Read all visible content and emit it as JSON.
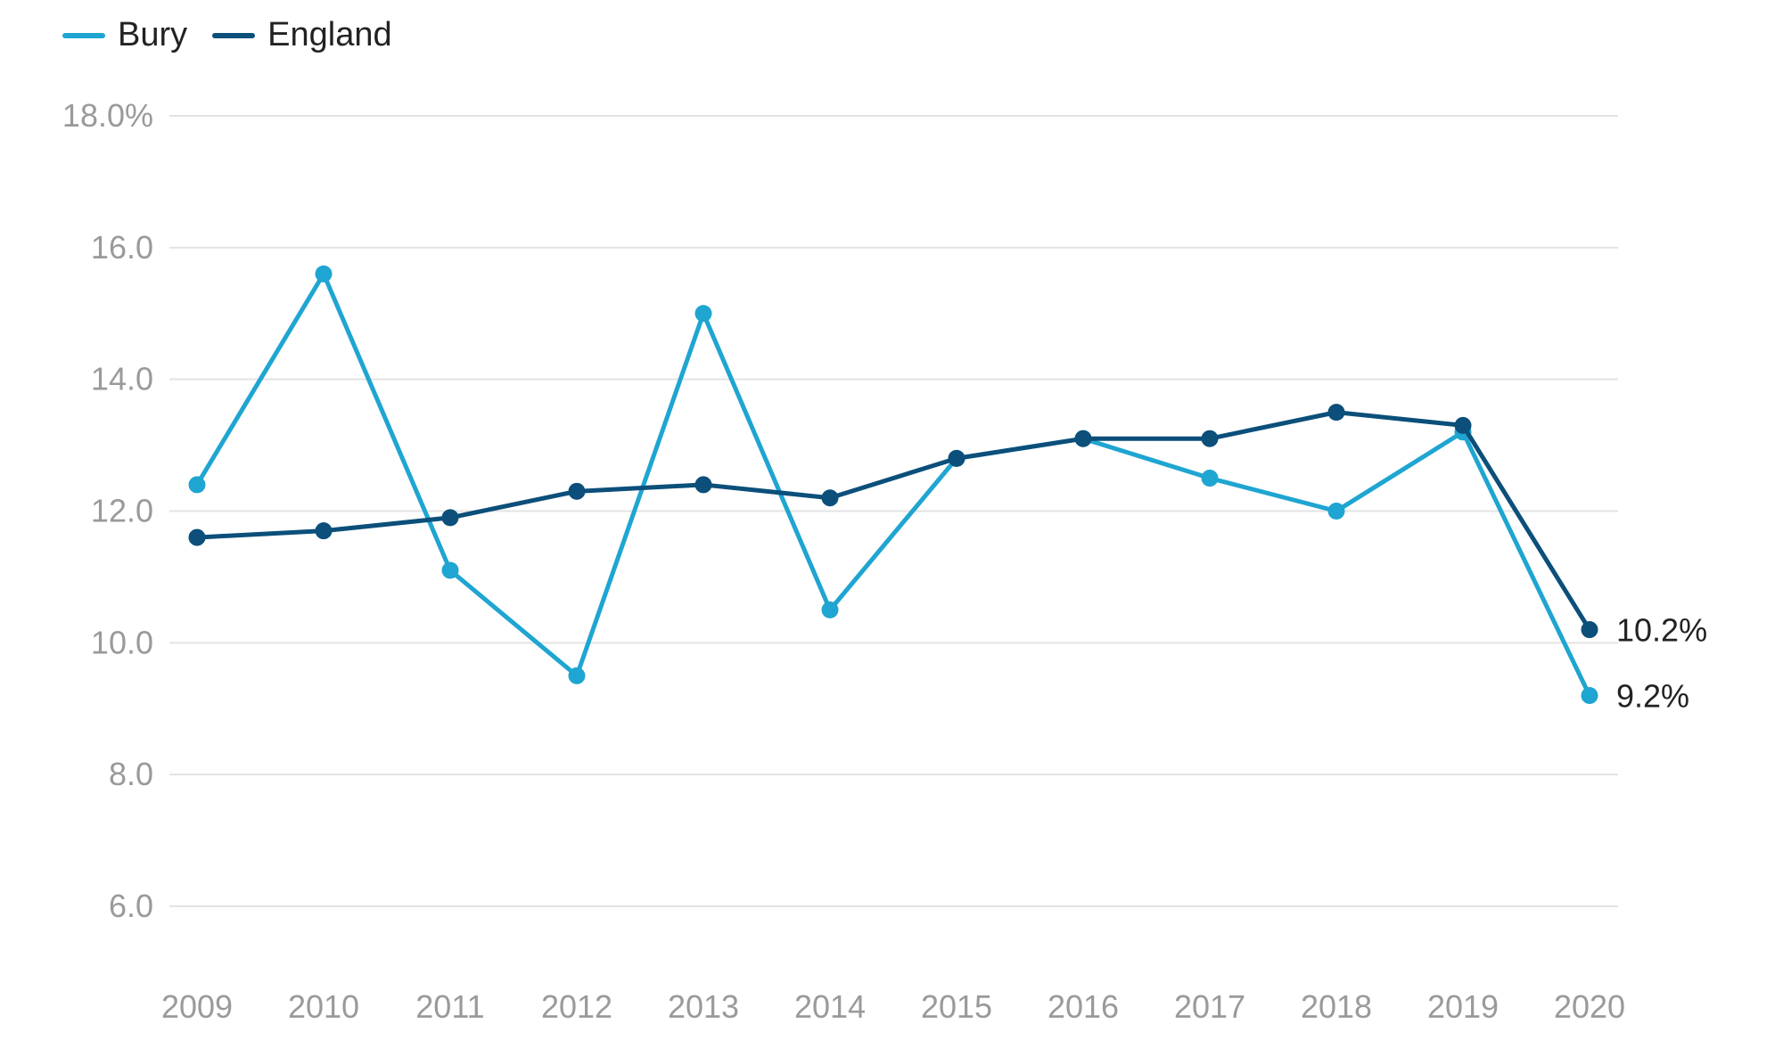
{
  "legend": [
    {
      "name": "Bury",
      "color": "#1fa5d1"
    },
    {
      "name": "England",
      "color": "#0b4f7a"
    }
  ],
  "chart_data": {
    "type": "line",
    "title": "",
    "xlabel": "",
    "ylabel": "",
    "x": [
      2009,
      2010,
      2011,
      2012,
      2013,
      2014,
      2015,
      2016,
      2017,
      2018,
      2019,
      2020
    ],
    "x_tick_labels": [
      "2009",
      "2010",
      "2011",
      "2012",
      "2013",
      "2014",
      "2015",
      "2016",
      "2017",
      "2018",
      "2019",
      "2020"
    ],
    "ylim": [
      6.0,
      18.0
    ],
    "y_ticks": [
      6.0,
      8.0,
      10.0,
      12.0,
      14.0,
      16.0,
      18.0
    ],
    "y_tick_labels": [
      "6.0",
      "8.0",
      "10.0",
      "12.0",
      "14.0",
      "16.0",
      "18.0%"
    ],
    "grid": true,
    "legend_position": "top-left",
    "series": [
      {
        "name": "Bury",
        "color": "#1fa5d1",
        "values": [
          12.4,
          15.6,
          11.1,
          9.5,
          15.0,
          10.5,
          12.8,
          13.1,
          12.5,
          12.0,
          13.2,
          9.2
        ],
        "end_label": "9.2%"
      },
      {
        "name": "England",
        "color": "#0b4f7a",
        "values": [
          11.6,
          11.7,
          11.9,
          12.3,
          12.4,
          12.2,
          12.8,
          13.1,
          13.1,
          13.5,
          13.3,
          10.2
        ],
        "end_label": "10.2%"
      }
    ]
  }
}
